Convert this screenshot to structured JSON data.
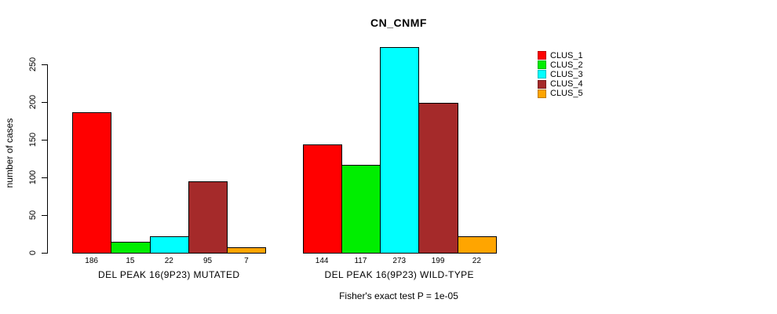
{
  "header": {
    "title": "CN_CNMF"
  },
  "y_axis": {
    "label": "number of cases",
    "ticks": [
      0,
      50,
      100,
      150,
      200,
      250
    ]
  },
  "footer": {
    "note": "Fisher's exact test P = 1e-05"
  },
  "chart_data": {
    "type": "bar",
    "title": "CN_CNMF",
    "xlabel": "",
    "ylabel": "number of cases",
    "ylim": [
      0,
      250
    ],
    "yticks": [
      0,
      50,
      100,
      150,
      200,
      250
    ],
    "grid": false,
    "legend_position": "right-outside-top",
    "bar_border_color": "#000000",
    "categories": [
      "DEL PEAK 16(9P23) MUTATED",
      "DEL PEAK 16(9P23) WILD-TYPE"
    ],
    "series": [
      {
        "name": "CLUS_1",
        "color": "#ff0000",
        "values": [
          186,
          144
        ]
      },
      {
        "name": "CLUS_2",
        "color": "#00ee00",
        "values": [
          15,
          117
        ]
      },
      {
        "name": "CLUS_3",
        "color": "#00ffff",
        "values": [
          22,
          273
        ]
      },
      {
        "name": "CLUS_4",
        "color": "#a52a2a",
        "values": [
          95,
          199
        ]
      },
      {
        "name": "CLUS_5",
        "color": "#ffa500",
        "values": [
          7,
          22
        ]
      }
    ],
    "groups": [
      {
        "label": "DEL PEAK 16(9P23) MUTATED",
        "values": [
          186,
          15,
          22,
          95,
          7
        ]
      },
      {
        "label": "DEL PEAK 16(9P23) WILD-TYPE",
        "values": [
          144,
          117,
          273,
          199,
          22
        ]
      }
    ],
    "annotation": "Fisher's exact test P = 1e-05"
  }
}
